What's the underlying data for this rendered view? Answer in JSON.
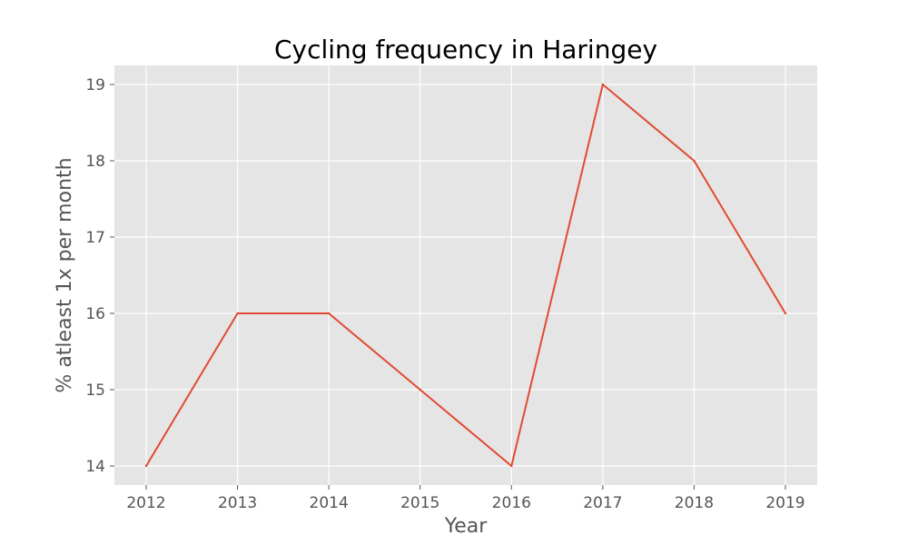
{
  "chart_data": {
    "type": "line",
    "title": "Cycling frequency in Haringey",
    "xlabel": "Year",
    "ylabel": "% atleast 1x per month",
    "x": [
      "2012",
      "2013",
      "2014",
      "2015",
      "2016",
      "2017",
      "2018",
      "2019"
    ],
    "series": [
      {
        "values": [
          14,
          16,
          16,
          15,
          14,
          19,
          18,
          16
        ]
      }
    ],
    "yticks": [
      14,
      15,
      16,
      17,
      18,
      19
    ],
    "ylim": [
      13.75,
      19.25
    ],
    "grid": true,
    "legend": "none",
    "colors": {
      "line": "#E24A33",
      "plot_background": "#E5E5E5",
      "figure_background": "#FFFFFF",
      "grid": "#FFFFFF"
    }
  }
}
